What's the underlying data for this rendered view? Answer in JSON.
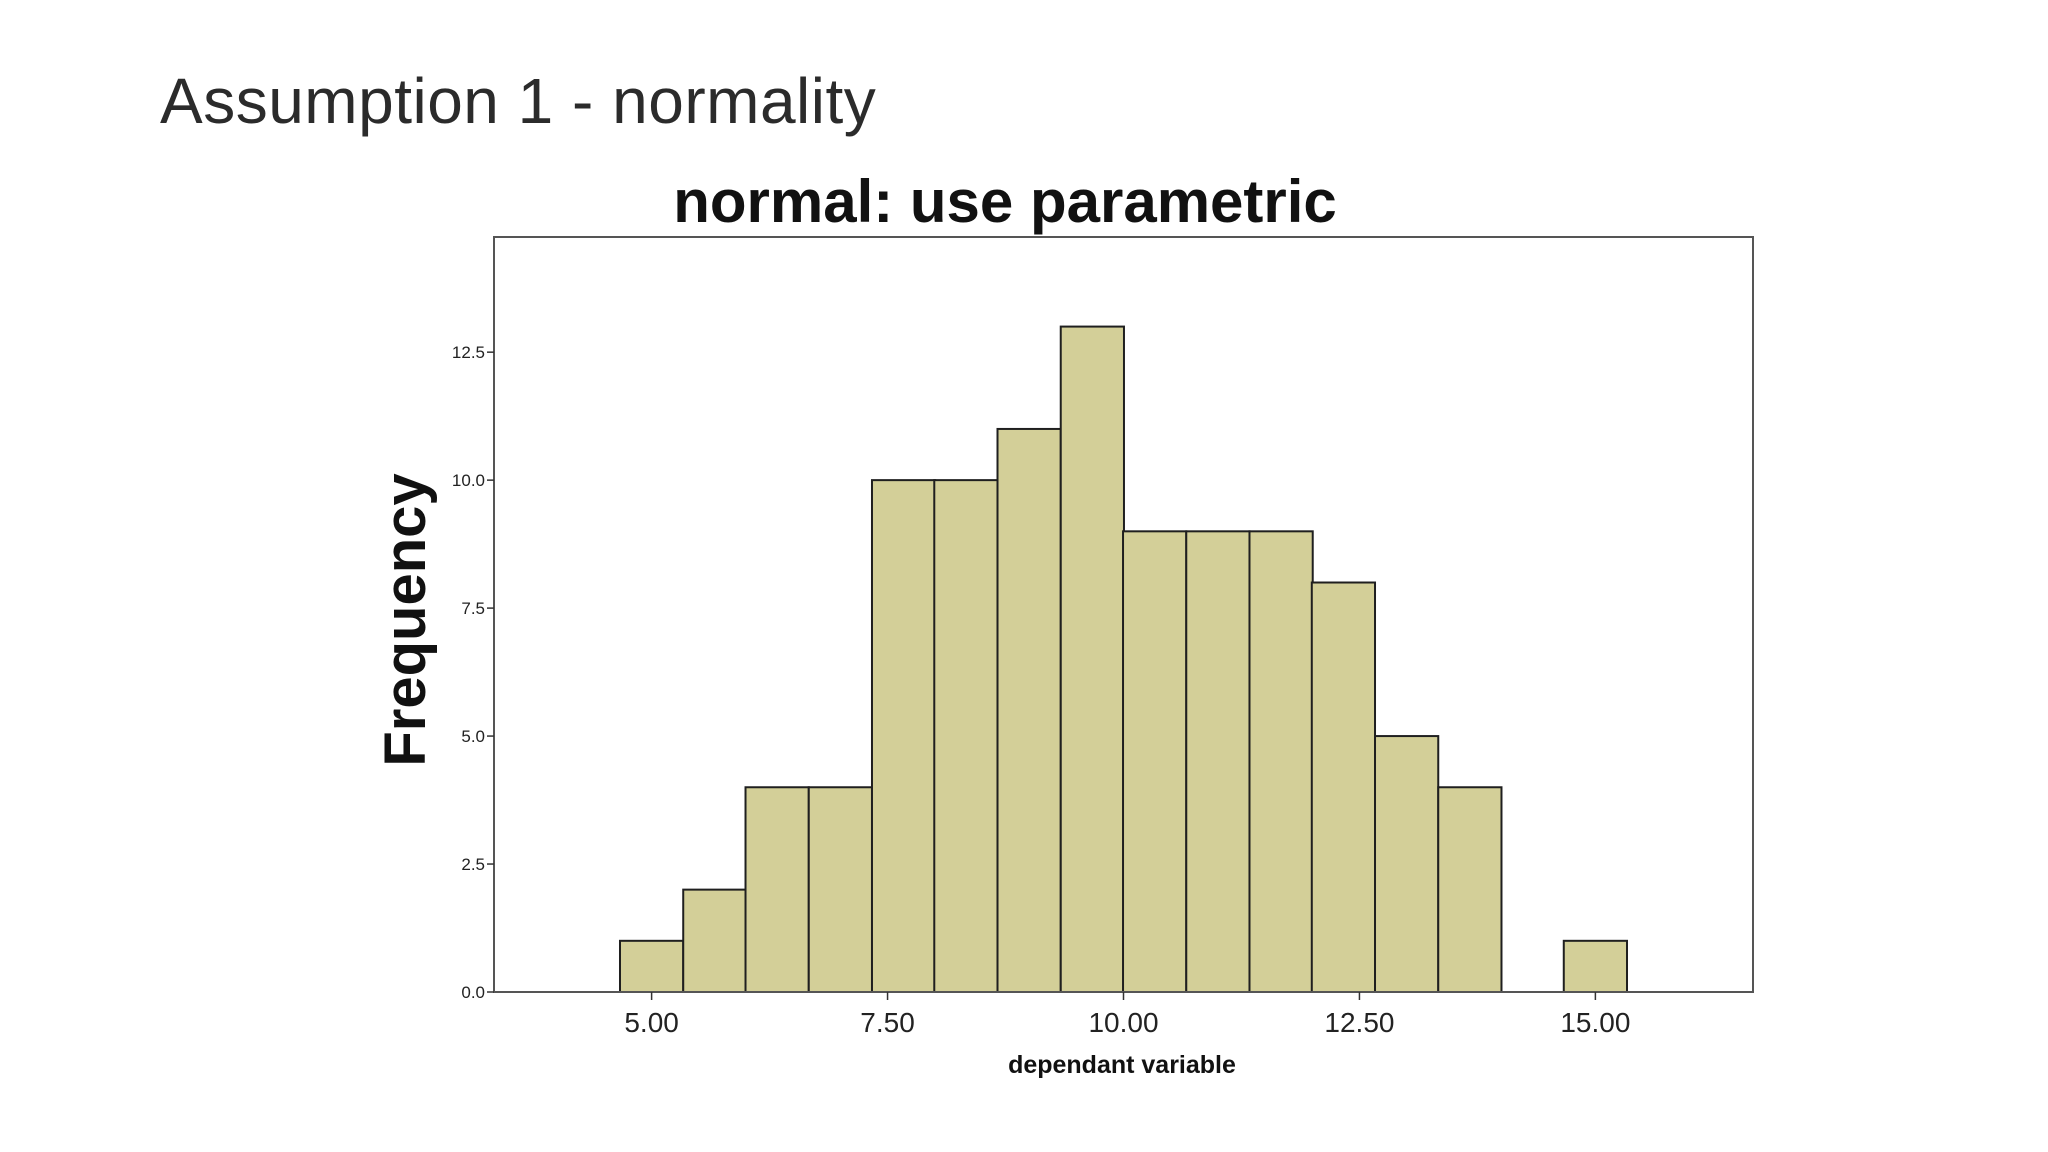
{
  "slide": {
    "title": "Assumption 1 - normality"
  },
  "chart_data": {
    "type": "bar",
    "title": "normal: use parametric",
    "xlabel": "dependant variable",
    "ylabel": "Frequency",
    "bin_width": 0.67,
    "x": [
      5.0,
      5.67,
      6.33,
      7.0,
      7.67,
      8.33,
      9.0,
      9.67,
      10.33,
      11.0,
      11.67,
      12.33,
      13.0,
      13.67,
      14.33,
      15.0
    ],
    "values": [
      1,
      2,
      4,
      4,
      10,
      10,
      11,
      13,
      9,
      9,
      9,
      8,
      5,
      4,
      0,
      1
    ],
    "xlim": [
      3.33,
      16.67
    ],
    "ylim": [
      0,
      14.75
    ],
    "xticks": [
      5.0,
      7.5,
      10.0,
      12.5,
      15.0
    ],
    "xtick_labels": [
      "5.00",
      "7.50",
      "10.00",
      "12.50",
      "15.00"
    ],
    "yticks": [
      0,
      2.5,
      5.0,
      7.5,
      10.0,
      12.5
    ],
    "ytick_labels": [
      "0.0",
      "2.5",
      "5.0",
      "7.5",
      "10.0",
      "12.5"
    ],
    "grid": false,
    "legend": "none",
    "bar_color": "#d3cf98",
    "edge_color": "#1f1f1f"
  }
}
